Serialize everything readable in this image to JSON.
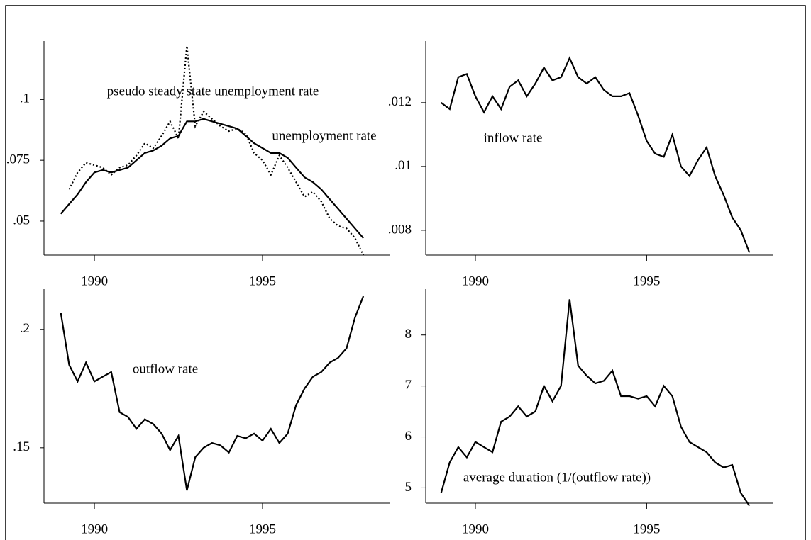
{
  "chart_data": [
    {
      "type": "line",
      "x": [
        1989.0,
        1989.25,
        1989.5,
        1989.75,
        1990.0,
        1990.25,
        1990.5,
        1990.75,
        1991.0,
        1991.25,
        1991.5,
        1991.75,
        1992.0,
        1992.25,
        1992.5,
        1992.75,
        1993.0,
        1993.25,
        1993.5,
        1993.75,
        1994.0,
        1994.25,
        1994.5,
        1994.75,
        1995.0,
        1995.25,
        1995.5,
        1995.75,
        1996.0,
        1996.25,
        1996.5,
        1996.75,
        1997.0,
        1997.25,
        1997.5,
        1997.75,
        1998.0
      ],
      "series": [
        {
          "name": "unemployment rate",
          "color": "#000000",
          "style": "solid",
          "values": [
            0.053,
            0.057,
            0.061,
            0.066,
            0.07,
            0.071,
            0.07,
            0.071,
            0.072,
            0.075,
            0.078,
            0.079,
            0.081,
            0.084,
            0.085,
            0.091,
            0.091,
            0.092,
            0.091,
            0.09,
            0.089,
            0.088,
            0.085,
            0.082,
            0.08,
            0.078,
            0.078,
            0.076,
            0.072,
            0.068,
            0.066,
            0.063,
            0.059,
            0.055,
            0.051,
            0.047,
            0.043
          ]
        },
        {
          "name": "pseudo steady state unemployment rate",
          "color": "#000000",
          "style": "dotted",
          "values": [
            null,
            0.063,
            0.07,
            0.074,
            0.073,
            0.072,
            0.069,
            0.072,
            0.073,
            0.077,
            0.082,
            0.08,
            0.085,
            0.091,
            0.084,
            0.122,
            0.089,
            0.095,
            0.092,
            0.089,
            0.087,
            0.088,
            0.086,
            0.078,
            0.075,
            0.069,
            0.077,
            0.072,
            0.066,
            0.06,
            0.062,
            0.058,
            0.051,
            0.048,
            0.047,
            0.043,
            0.036
          ]
        }
      ],
      "xlim": [
        1988.5,
        1998.8
      ],
      "xticks": [
        1990,
        1995
      ],
      "ylim": [
        0.036,
        0.124
      ],
      "yticks": [
        {
          "value": 0.05,
          "label": ".05"
        },
        {
          "value": 0.075,
          "label": ".075"
        },
        {
          "value": 0.1,
          "label": ".1"
        }
      ]
    },
    {
      "type": "line",
      "x": [
        1989.0,
        1989.25,
        1989.5,
        1989.75,
        1990.0,
        1990.25,
        1990.5,
        1990.75,
        1991.0,
        1991.25,
        1991.5,
        1991.75,
        1992.0,
        1992.25,
        1992.5,
        1992.75,
        1993.0,
        1993.25,
        1993.5,
        1993.75,
        1994.0,
        1994.25,
        1994.5,
        1994.75,
        1995.0,
        1995.25,
        1995.5,
        1995.75,
        1996.0,
        1996.25,
        1996.5,
        1996.75,
        1997.0,
        1997.25,
        1997.5,
        1997.75,
        1998.0
      ],
      "series": [
        {
          "name": "inflow rate",
          "color": "#000000",
          "style": "solid",
          "values": [
            0.012,
            0.0118,
            0.0128,
            0.0129,
            0.0122,
            0.0117,
            0.0122,
            0.0118,
            0.0125,
            0.0127,
            0.0122,
            0.0126,
            0.0131,
            0.0127,
            0.0128,
            0.0134,
            0.0128,
            0.0126,
            0.0128,
            0.0124,
            0.0122,
            0.0122,
            0.0123,
            0.0116,
            0.0108,
            0.0104,
            0.0103,
            0.011,
            0.01,
            0.0097,
            0.0102,
            0.0106,
            0.0097,
            0.0091,
            0.0084,
            0.008,
            0.0073
          ]
        }
      ],
      "xlim": [
        1988.55,
        1998.7
      ],
      "xticks": [
        1990,
        1995
      ],
      "ylim": [
        0.00722,
        0.01393
      ],
      "yticks": [
        {
          "value": 0.008,
          "label": ".008"
        },
        {
          "value": 0.01,
          "label": ".01"
        },
        {
          "value": 0.012,
          "label": ".012"
        }
      ]
    },
    {
      "type": "line",
      "x": [
        1989.0,
        1989.25,
        1989.5,
        1989.75,
        1990.0,
        1990.25,
        1990.5,
        1990.75,
        1991.0,
        1991.25,
        1991.5,
        1991.75,
        1992.0,
        1992.25,
        1992.5,
        1992.75,
        1993.0,
        1993.25,
        1993.5,
        1993.75,
        1994.0,
        1994.25,
        1994.5,
        1994.75,
        1995.0,
        1995.25,
        1995.5,
        1995.75,
        1996.0,
        1996.25,
        1996.5,
        1996.75,
        1997.0,
        1997.25,
        1997.5,
        1997.75,
        1998.0
      ],
      "series": [
        {
          "name": "outflow rate",
          "color": "#000000",
          "style": "solid",
          "values": [
            0.207,
            0.185,
            0.178,
            0.186,
            0.178,
            0.18,
            0.182,
            0.165,
            0.163,
            0.158,
            0.162,
            0.16,
            0.156,
            0.149,
            0.155,
            0.132,
            0.146,
            0.15,
            0.152,
            0.151,
            0.148,
            0.155,
            0.154,
            0.156,
            0.153,
            0.158,
            0.152,
            0.156,
            0.168,
            0.175,
            0.18,
            0.182,
            0.186,
            0.188,
            0.192,
            0.205,
            0.214
          ]
        }
      ],
      "xlim": [
        1988.5,
        1998.8
      ],
      "xticks": [
        1990,
        1995
      ],
      "ylim": [
        0.1266,
        0.217
      ],
      "yticks": [
        {
          "value": 0.15,
          "label": ".15"
        },
        {
          "value": 0.2,
          "label": ".2"
        }
      ]
    },
    {
      "type": "line",
      "x": [
        1989.0,
        1989.25,
        1989.5,
        1989.75,
        1990.0,
        1990.25,
        1990.5,
        1990.75,
        1991.0,
        1991.25,
        1991.5,
        1991.75,
        1992.0,
        1992.25,
        1992.5,
        1992.75,
        1993.0,
        1993.25,
        1993.5,
        1993.75,
        1994.0,
        1994.25,
        1994.5,
        1994.75,
        1995.0,
        1995.25,
        1995.5,
        1995.75,
        1996.0,
        1996.25,
        1996.5,
        1996.75,
        1997.0,
        1997.25,
        1997.5,
        1997.75,
        1998.0
      ],
      "series": [
        {
          "name": "average duration (1/(outflow rate))",
          "color": "#000000",
          "style": "solid",
          "values": [
            4.9,
            5.5,
            5.8,
            5.6,
            5.9,
            5.8,
            5.7,
            6.3,
            6.4,
            6.6,
            6.4,
            6.5,
            7.0,
            6.7,
            7.0,
            8.7,
            7.4,
            7.2,
            7.05,
            7.1,
            7.3,
            6.8,
            6.8,
            6.75,
            6.8,
            6.6,
            7.0,
            6.8,
            6.2,
            5.9,
            5.8,
            5.7,
            5.5,
            5.4,
            5.45,
            4.9,
            4.65
          ]
        }
      ],
      "xlim": [
        1988.55,
        1998.7
      ],
      "xticks": [
        1990,
        1995
      ],
      "ylim": [
        4.7,
        8.9
      ],
      "yticks": [
        5,
        6,
        7,
        8
      ]
    }
  ]
}
